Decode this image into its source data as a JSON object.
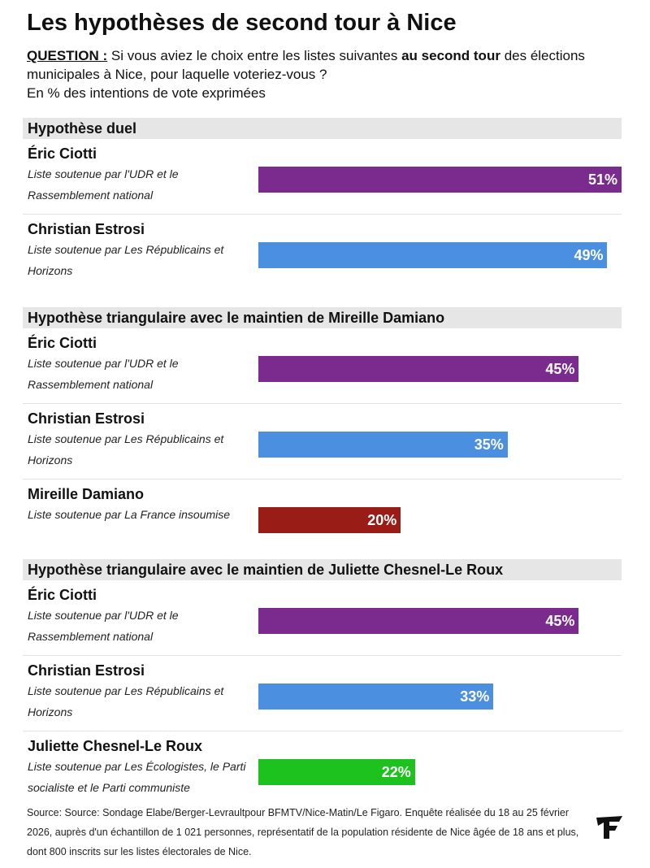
{
  "title": "Les hypothèses de second tour à Nice",
  "question": {
    "label": "QUESTION :",
    "text_before": "Si vous aviez le choix entre les listes suivantes",
    "emphasis": "au second tour",
    "text_after": "des élections municipales à Nice, pour laquelle voteriez-vous ?"
  },
  "unit_note": "En % des intentions de vote exprimées",
  "chart_data": [
    {
      "type": "bar",
      "title": "Hypothèse duel",
      "categories": [
        "Éric Ciotti",
        "Christian Estrosi"
      ],
      "descriptions": [
        "Liste soutenue par l'UDR et le Rassemblement national",
        "Liste soutenue par Les Républicains et Horizons"
      ],
      "values": [
        51,
        49
      ],
      "value_labels": [
        "51%",
        "49%"
      ],
      "colors": [
        "#7b2a8e",
        "#4a8fe0"
      ]
    },
    {
      "type": "bar",
      "title": "Hypothèse triangulaire avec le maintien de Mireille Damiano",
      "categories": [
        "Éric Ciotti",
        "Christian Estrosi",
        "Mireille Damiano"
      ],
      "descriptions": [
        "Liste soutenue par l'UDR et le Rassemblement national",
        "Liste soutenue par Les Républicains et Horizons",
        "Liste soutenue par La France insoumise"
      ],
      "values": [
        45,
        35,
        20
      ],
      "value_labels": [
        "45%",
        "35%",
        "20%"
      ],
      "colors": [
        "#7b2a8e",
        "#4a8fe0",
        "#9a1c17"
      ]
    },
    {
      "type": "bar",
      "title": "Hypothèse triangulaire avec le maintien de Juliette Chesnel-Le Roux",
      "categories": [
        "Éric Ciotti",
        "Christian Estrosi",
        "Juliette Chesnel-Le Roux"
      ],
      "descriptions": [
        "Liste soutenue par l'UDR et le Rassemblement national",
        "Liste soutenue par Les Républicains et Horizons",
        "Liste soutenue par Les Écologistes, le Parti socialiste et le Parti communiste"
      ],
      "values": [
        45,
        33,
        22
      ],
      "value_labels": [
        "45%",
        "33%",
        "22%"
      ],
      "colors": [
        "#7b2a8e",
        "#4a8fe0",
        "#1ec21e"
      ]
    }
  ],
  "source": "Source: Source: Sondage Elabe/Berger-Levraultpour BFMTV/Nice-Matin/Le Figaro. Enquête réalisée du 18 au 25 février 2026, auprès d'un échantillon de 1 021 personnes, représentatif de la population résidente de Nice âgée de 18 ans et plus, dont 800 inscrits sur les listes électorales de Nice."
}
